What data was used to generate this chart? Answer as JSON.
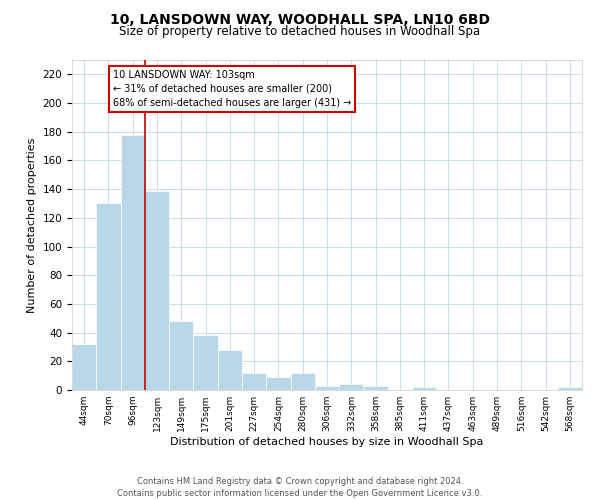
{
  "title": "10, LANSDOWN WAY, WOODHALL SPA, LN10 6BD",
  "subtitle": "Size of property relative to detached houses in Woodhall Spa",
  "xlabel": "Distribution of detached houses by size in Woodhall Spa",
  "ylabel": "Number of detached properties",
  "bar_labels": [
    "44sqm",
    "70sqm",
    "96sqm",
    "123sqm",
    "149sqm",
    "175sqm",
    "201sqm",
    "227sqm",
    "254sqm",
    "280sqm",
    "306sqm",
    "332sqm",
    "358sqm",
    "385sqm",
    "411sqm",
    "437sqm",
    "463sqm",
    "489sqm",
    "516sqm",
    "542sqm",
    "568sqm"
  ],
  "bar_heights": [
    32,
    130,
    178,
    139,
    48,
    38,
    28,
    12,
    9,
    12,
    3,
    4,
    3,
    0,
    2,
    0,
    0,
    0,
    0,
    0,
    2
  ],
  "bar_color": "#b8d8e8",
  "bar_edge_color": "#b8d8e8",
  "vline_x_index": 2,
  "vline_color": "#cc0000",
  "ylim": [
    0,
    230
  ],
  "yticks": [
    0,
    20,
    40,
    60,
    80,
    100,
    120,
    140,
    160,
    180,
    200,
    220
  ],
  "annotation_title": "10 LANSDOWN WAY: 103sqm",
  "annotation_line1": "← 31% of detached houses are smaller (200)",
  "annotation_line2": "68% of semi-detached houses are larger (431) →",
  "footer_line1": "Contains HM Land Registry data © Crown copyright and database right 2024.",
  "footer_line2": "Contains public sector information licensed under the Open Government Licence v3.0.",
  "background_color": "#ffffff",
  "grid_color": "#c8dcea"
}
